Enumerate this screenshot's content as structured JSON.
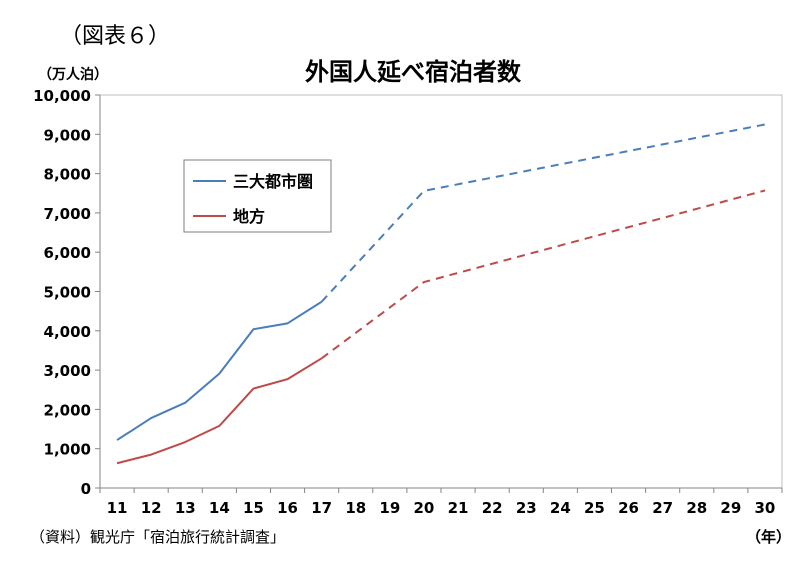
{
  "figure_label": "（図表６）",
  "source_note": "（資料）観光庁「宿泊旅行統計調査」",
  "chart_data": {
    "type": "line",
    "title": "外国人延べ宿泊者数",
    "ylabel": "（万人泊）",
    "xlabel": "（年）",
    "ylim": [
      0,
      10000
    ],
    "yticks": [
      0,
      1000,
      2000,
      3000,
      4000,
      5000,
      6000,
      7000,
      8000,
      9000,
      10000
    ],
    "ytick_labels": [
      "0",
      "1,000",
      "2,000",
      "3,000",
      "4,000",
      "5,000",
      "6,000",
      "7,000",
      "8,000",
      "9,000",
      "10,000"
    ],
    "categories": [
      "11",
      "12",
      "13",
      "14",
      "15",
      "16",
      "17",
      "18",
      "19",
      "20",
      "21",
      "22",
      "23",
      "24",
      "25",
      "26",
      "27",
      "28",
      "29",
      "30"
    ],
    "grid": false,
    "legend_position": "upper-left inside plot",
    "series": [
      {
        "name": "三大都市圏",
        "color": "#4a7ebb",
        "actual_x": [
          "11",
          "12",
          "13",
          "14",
          "15",
          "16",
          "17"
        ],
        "actual_y": [
          1220,
          1780,
          2170,
          2910,
          4040,
          4190,
          4740
        ],
        "projected_x": [
          "17",
          "20",
          "30"
        ],
        "projected_y": [
          4740,
          7560,
          9250
        ]
      },
      {
        "name": "地方",
        "color": "#be4b48",
        "actual_x": [
          "11",
          "12",
          "13",
          "14",
          "15",
          "16",
          "17"
        ],
        "actual_y": [
          630,
          850,
          1170,
          1580,
          2530,
          2770,
          3300
        ],
        "projected_x": [
          "17",
          "20",
          "30"
        ],
        "projected_y": [
          3300,
          5240,
          7570
        ]
      }
    ]
  }
}
